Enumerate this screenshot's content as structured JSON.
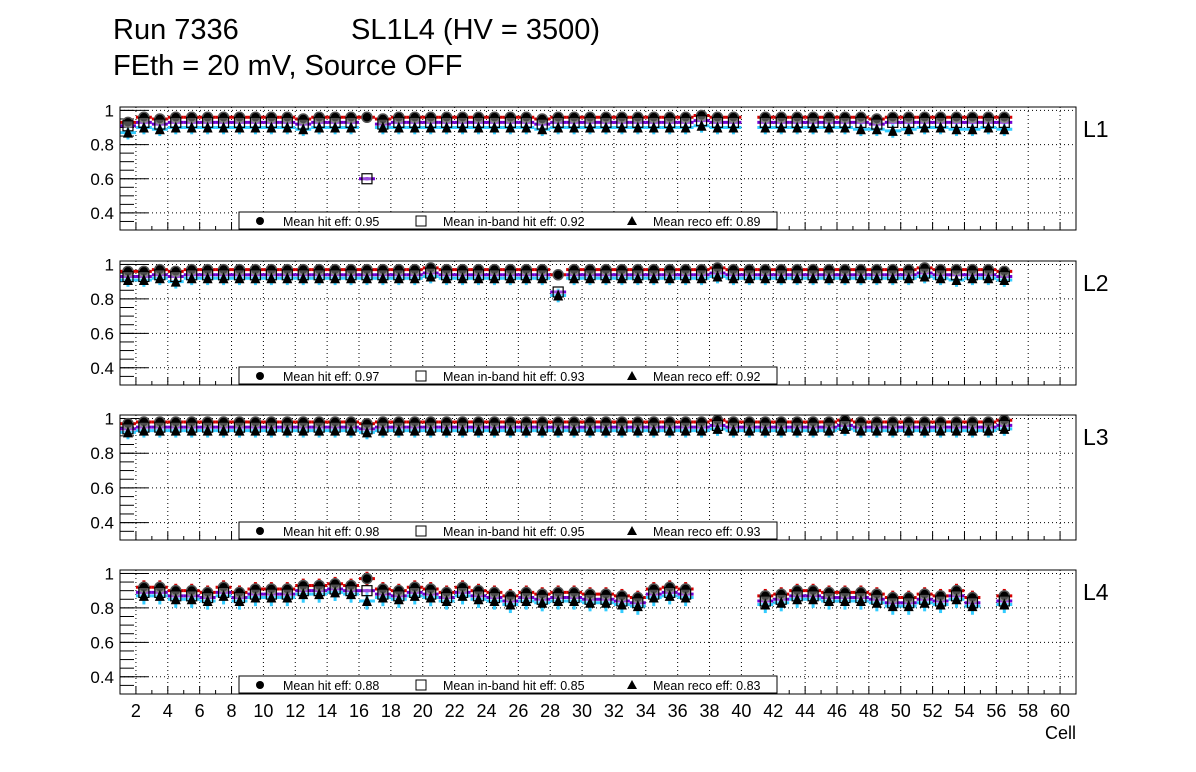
{
  "title": {
    "run": "Run 7336",
    "chamber": "SL1L4 (HV = 3500)",
    "conditions": "FEth = 20 mV, Source OFF"
  },
  "colors": {
    "hit": "#d40000",
    "inband": "#7000d0",
    "reco": "#33ccff",
    "marker": "#000000"
  },
  "chart_data": [
    {
      "type": "line",
      "layer_label": "L1",
      "xlabel": "Cell",
      "ylabel": "",
      "xlim": [
        1,
        61
      ],
      "ylim": [
        0.3,
        1.02
      ],
      "yticks": [
        0.4,
        0.6,
        0.8,
        1
      ],
      "ytick_labels": [
        "0.4",
        "0.6",
        "0.8",
        "1"
      ],
      "grid": true,
      "legend": [
        "Mean hit  eff: 0.95",
        "Mean in-band hit eff: 0.92",
        "Mean reco eff: 0.89"
      ],
      "legend_placement": "bottom-center",
      "series": [
        {
          "name": "hit",
          "err": 0.03,
          "values": [
            0.93,
            0.96,
            0.95,
            0.96,
            0.96,
            0.96,
            0.96,
            0.96,
            0.96,
            0.96,
            0.96,
            0.95,
            0.96,
            0.96,
            0.96,
            0.96,
            0.95,
            0.96,
            0.96,
            0.96,
            0.96,
            0.96,
            0.96,
            0.96,
            0.96,
            0.96,
            0.95,
            0.96,
            0.96,
            0.96,
            0.96,
            0.96,
            0.96,
            0.96,
            0.96,
            0.96,
            0.97,
            0.96,
            0.96,
            null,
            0.96,
            0.96,
            0.96,
            0.96,
            0.96,
            0.96,
            0.96,
            0.95,
            0.96,
            0.96,
            0.96,
            0.96,
            0.96,
            0.96,
            0.96,
            0.96
          ]
        },
        {
          "name": "inband",
          "err": 0.01,
          "values": [
            0.91,
            0.93,
            0.92,
            0.93,
            0.93,
            0.93,
            0.93,
            0.93,
            0.93,
            0.93,
            0.93,
            0.92,
            0.93,
            0.93,
            0.93,
            0.6,
            0.92,
            0.93,
            0.93,
            0.93,
            0.93,
            0.93,
            0.93,
            0.93,
            0.93,
            0.93,
            0.92,
            0.93,
            0.93,
            0.93,
            0.93,
            0.93,
            0.93,
            0.93,
            0.93,
            0.93,
            0.94,
            0.93,
            0.93,
            null,
            0.93,
            0.93,
            0.93,
            0.93,
            0.93,
            0.93,
            0.93,
            0.92,
            0.93,
            0.93,
            0.93,
            0.93,
            0.93,
            0.93,
            0.93,
            0.93
          ]
        },
        {
          "name": "reco",
          "err": 0.04,
          "values": [
            0.87,
            0.9,
            0.89,
            0.9,
            0.9,
            0.9,
            0.9,
            0.9,
            0.9,
            0.9,
            0.9,
            0.89,
            0.9,
            0.9,
            0.9,
            null,
            0.9,
            0.9,
            0.9,
            0.9,
            0.9,
            0.9,
            0.9,
            0.9,
            0.9,
            0.9,
            0.89,
            0.9,
            0.9,
            0.9,
            0.9,
            0.9,
            0.9,
            0.9,
            0.9,
            0.9,
            0.91,
            0.9,
            0.9,
            null,
            0.9,
            0.9,
            0.9,
            0.9,
            0.9,
            0.9,
            0.89,
            0.89,
            0.88,
            0.89,
            0.9,
            0.9,
            0.89,
            0.89,
            0.9,
            0.89
          ]
        }
      ]
    },
    {
      "type": "line",
      "layer_label": "L2",
      "xlabel": "Cell",
      "ylabel": "",
      "xlim": [
        1,
        61
      ],
      "ylim": [
        0.3,
        1.02
      ],
      "yticks": [
        0.4,
        0.6,
        0.8,
        1
      ],
      "ytick_labels": [
        "0.4",
        "0.6",
        "0.8",
        "1"
      ],
      "grid": true,
      "legend": [
        "Mean hit  eff: 0.97",
        "Mean in-band hit eff: 0.93",
        "Mean reco eff: 0.92"
      ],
      "legend_placement": "bottom-center",
      "series": [
        {
          "name": "hit",
          "err": 0.03,
          "values": [
            0.96,
            0.96,
            0.97,
            0.96,
            0.97,
            0.97,
            0.97,
            0.97,
            0.97,
            0.97,
            0.97,
            0.97,
            0.97,
            0.97,
            0.97,
            0.97,
            0.97,
            0.97,
            0.97,
            0.98,
            0.97,
            0.97,
            0.97,
            0.97,
            0.97,
            0.97,
            0.97,
            0.94,
            0.97,
            0.97,
            0.97,
            0.97,
            0.97,
            0.97,
            0.97,
            0.97,
            0.97,
            0.98,
            0.97,
            0.97,
            0.97,
            0.97,
            0.97,
            0.97,
            0.97,
            0.97,
            0.97,
            0.97,
            0.97,
            0.97,
            0.98,
            0.97,
            0.97,
            0.97,
            0.97,
            0.96
          ]
        },
        {
          "name": "inband",
          "err": 0.01,
          "values": [
            0.93,
            0.93,
            0.94,
            0.93,
            0.94,
            0.94,
            0.94,
            0.94,
            0.94,
            0.94,
            0.94,
            0.94,
            0.94,
            0.94,
            0.94,
            0.94,
            0.94,
            0.94,
            0.94,
            0.95,
            0.94,
            0.94,
            0.94,
            0.94,
            0.94,
            0.94,
            0.94,
            0.84,
            0.94,
            0.94,
            0.94,
            0.94,
            0.94,
            0.94,
            0.94,
            0.94,
            0.94,
            0.95,
            0.94,
            0.94,
            0.94,
            0.94,
            0.94,
            0.94,
            0.94,
            0.94,
            0.94,
            0.94,
            0.94,
            0.94,
            0.95,
            0.94,
            0.94,
            0.94,
            0.94,
            0.93
          ]
        },
        {
          "name": "reco",
          "err": 0.04,
          "values": [
            0.91,
            0.91,
            0.92,
            0.9,
            0.92,
            0.92,
            0.92,
            0.92,
            0.92,
            0.92,
            0.92,
            0.92,
            0.92,
            0.92,
            0.92,
            0.92,
            0.92,
            0.92,
            0.92,
            0.93,
            0.92,
            0.92,
            0.92,
            0.92,
            0.92,
            0.92,
            0.92,
            0.82,
            0.92,
            0.92,
            0.92,
            0.92,
            0.92,
            0.92,
            0.92,
            0.92,
            0.92,
            0.93,
            0.92,
            0.92,
            0.92,
            0.92,
            0.92,
            0.92,
            0.92,
            0.92,
            0.92,
            0.92,
            0.92,
            0.92,
            0.93,
            0.92,
            0.91,
            0.92,
            0.92,
            0.91
          ]
        }
      ]
    },
    {
      "type": "line",
      "layer_label": "L3",
      "xlabel": "Cell",
      "ylabel": "",
      "xlim": [
        1,
        61
      ],
      "ylim": [
        0.3,
        1.02
      ],
      "yticks": [
        0.4,
        0.6,
        0.8,
        1
      ],
      "ytick_labels": [
        "0.4",
        "0.6",
        "0.8",
        "1"
      ],
      "grid": true,
      "legend": [
        "Mean hit  eff: 0.98",
        "Mean in-band hit eff: 0.95",
        "Mean reco eff: 0.93"
      ],
      "legend_placement": "bottom-center",
      "series": [
        {
          "name": "hit",
          "err": 0.02,
          "values": [
            0.97,
            0.98,
            0.98,
            0.98,
            0.98,
            0.98,
            0.98,
            0.98,
            0.98,
            0.98,
            0.98,
            0.98,
            0.98,
            0.98,
            0.98,
            0.97,
            0.98,
            0.98,
            0.98,
            0.98,
            0.98,
            0.98,
            0.98,
            0.98,
            0.98,
            0.98,
            0.98,
            0.98,
            0.98,
            0.98,
            0.98,
            0.98,
            0.98,
            0.98,
            0.98,
            0.98,
            0.98,
            0.99,
            0.98,
            0.98,
            0.98,
            0.98,
            0.98,
            0.98,
            0.98,
            0.99,
            0.98,
            0.98,
            0.98,
            0.98,
            0.98,
            0.98,
            0.98,
            0.98,
            0.98,
            0.99
          ]
        },
        {
          "name": "inband",
          "err": 0.01,
          "values": [
            0.94,
            0.95,
            0.95,
            0.95,
            0.95,
            0.95,
            0.95,
            0.95,
            0.95,
            0.95,
            0.95,
            0.95,
            0.95,
            0.95,
            0.95,
            0.94,
            0.95,
            0.95,
            0.95,
            0.95,
            0.95,
            0.95,
            0.95,
            0.95,
            0.95,
            0.95,
            0.95,
            0.95,
            0.95,
            0.95,
            0.95,
            0.95,
            0.95,
            0.95,
            0.95,
            0.95,
            0.95,
            0.96,
            0.95,
            0.95,
            0.95,
            0.95,
            0.95,
            0.95,
            0.95,
            0.96,
            0.95,
            0.95,
            0.95,
            0.95,
            0.95,
            0.95,
            0.95,
            0.95,
            0.95,
            0.96
          ]
        },
        {
          "name": "reco",
          "err": 0.04,
          "values": [
            0.92,
            0.93,
            0.93,
            0.93,
            0.93,
            0.93,
            0.93,
            0.93,
            0.93,
            0.93,
            0.93,
            0.93,
            0.93,
            0.93,
            0.93,
            0.92,
            0.93,
            0.93,
            0.93,
            0.93,
            0.93,
            0.93,
            0.93,
            0.93,
            0.93,
            0.93,
            0.93,
            0.93,
            0.93,
            0.93,
            0.93,
            0.93,
            0.93,
            0.93,
            0.93,
            0.93,
            0.93,
            0.94,
            0.93,
            0.93,
            0.93,
            0.93,
            0.93,
            0.93,
            0.93,
            0.94,
            0.93,
            0.93,
            0.93,
            0.93,
            0.93,
            0.93,
            0.93,
            0.93,
            0.93,
            0.94
          ]
        }
      ]
    },
    {
      "type": "line",
      "layer_label": "L4",
      "xlabel": "Cell",
      "ylabel": "",
      "xlim": [
        1,
        61
      ],
      "ylim": [
        0.3,
        1.02
      ],
      "yticks": [
        0.4,
        0.6,
        0.8,
        1
      ],
      "ytick_labels": [
        "0.4",
        "0.6",
        "0.8",
        "1"
      ],
      "grid": true,
      "xticks": [
        2,
        4,
        6,
        8,
        10,
        12,
        14,
        16,
        18,
        20,
        22,
        24,
        26,
        28,
        30,
        32,
        34,
        36,
        38,
        40,
        42,
        44,
        46,
        48,
        50,
        52,
        54,
        56,
        58,
        60
      ],
      "xtick_labels": [
        "2",
        "4",
        "6",
        "8",
        "10",
        "12",
        "14",
        "16",
        "18",
        "20",
        "22",
        "24",
        "26",
        "28",
        "30",
        "32",
        "34",
        "36",
        "38",
        "40",
        "42",
        "44",
        "46",
        "48",
        "50",
        "52",
        "54",
        "56",
        "58",
        "60"
      ],
      "legend": [
        "Mean hit  eff: 0.88",
        "Mean in-band hit eff: 0.85",
        "Mean reco eff: 0.83"
      ],
      "legend_placement": "bottom-center",
      "series": [
        {
          "name": "hit",
          "err": 0.04,
          "values": [
            null,
            0.92,
            0.92,
            0.9,
            0.9,
            0.89,
            0.92,
            0.89,
            0.91,
            0.91,
            0.91,
            0.93,
            0.93,
            0.94,
            0.93,
            0.97,
            0.91,
            0.9,
            0.92,
            0.91,
            0.89,
            0.92,
            0.9,
            0.89,
            0.87,
            0.89,
            0.88,
            0.89,
            0.89,
            0.88,
            0.88,
            0.87,
            0.86,
            0.91,
            0.92,
            0.91,
            null,
            null,
            null,
            null,
            0.87,
            0.88,
            0.9,
            0.9,
            0.89,
            0.89,
            0.89,
            0.88,
            0.86,
            0.86,
            0.88,
            0.87,
            0.9,
            0.86,
            null,
            0.87
          ]
        },
        {
          "name": "inband",
          "err": 0.01,
          "values": [
            null,
            0.89,
            0.89,
            0.87,
            0.87,
            0.86,
            0.89,
            0.86,
            0.88,
            0.88,
            0.88,
            0.9,
            0.9,
            0.91,
            0.9,
            0.9,
            0.88,
            0.87,
            0.89,
            0.88,
            0.86,
            0.89,
            0.87,
            0.86,
            0.84,
            0.86,
            0.85,
            0.86,
            0.86,
            0.85,
            0.85,
            0.84,
            0.83,
            0.88,
            0.89,
            0.88,
            null,
            null,
            null,
            null,
            0.84,
            0.85,
            0.87,
            0.87,
            0.86,
            0.86,
            0.86,
            0.85,
            0.83,
            0.83,
            0.85,
            0.84,
            0.87,
            0.83,
            null,
            0.84
          ]
        },
        {
          "name": "reco",
          "err": 0.05,
          "values": [
            null,
            0.87,
            0.87,
            0.85,
            0.85,
            0.84,
            0.87,
            0.84,
            0.86,
            0.86,
            0.86,
            0.88,
            0.88,
            0.89,
            0.88,
            0.84,
            0.86,
            0.85,
            0.87,
            0.86,
            0.84,
            0.87,
            0.85,
            0.84,
            0.82,
            0.84,
            0.83,
            0.84,
            0.84,
            0.83,
            0.83,
            0.82,
            0.81,
            0.86,
            0.87,
            0.86,
            null,
            null,
            null,
            null,
            0.82,
            0.83,
            0.85,
            0.85,
            0.84,
            0.84,
            0.84,
            0.83,
            0.81,
            0.81,
            0.83,
            0.82,
            0.85,
            0.81,
            null,
            0.82
          ]
        }
      ]
    }
  ]
}
